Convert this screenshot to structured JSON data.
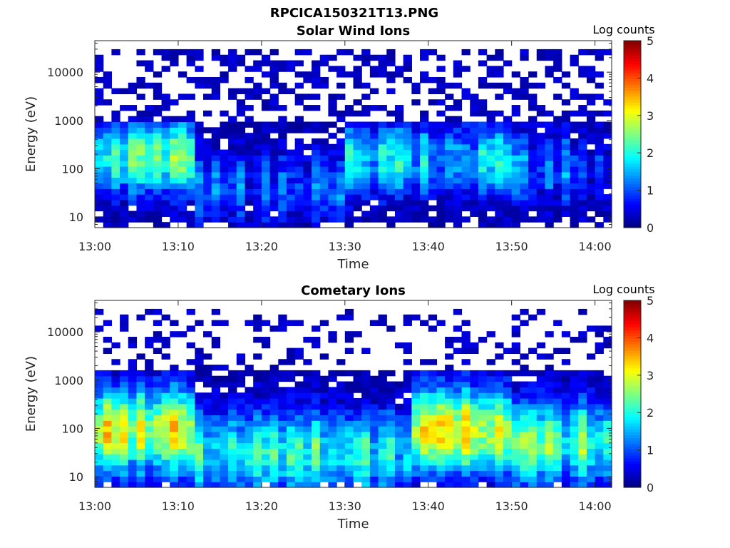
{
  "figure_title": "RPCICA150321T13.PNG",
  "chart_data": [
    {
      "type": "heatmap",
      "title": "Solar Wind Ions",
      "xlabel": "Time",
      "ylabel": "Energy (eV)",
      "yscale": "log",
      "ylim": [
        6,
        45000
      ],
      "xlim": [
        "13:00",
        "14:02"
      ],
      "x_ticks": [
        "13:00",
        "13:10",
        "13:20",
        "13:30",
        "13:40",
        "13:50",
        "14:00"
      ],
      "y_ticks": [
        "10",
        "100",
        "1000",
        "10000"
      ],
      "colorbar": {
        "label": "Log counts",
        "range": [
          0,
          5
        ],
        "ticks": [
          "0",
          "1",
          "2",
          "3",
          "4",
          "5"
        ],
        "colormap": "jet"
      },
      "time_bins": 62,
      "energy_bins": 32,
      "peak_profile": [
        {
          "t0": 0,
          "t1": 12,
          "log_energy_center": 2.25,
          "value": 2.1
        },
        {
          "t0": 12,
          "t1": 30,
          "log_energy_center": 1.6,
          "value": 1.0
        },
        {
          "t0": 30,
          "t1": 50,
          "log_energy_center": 2.2,
          "value": 1.7
        },
        {
          "t0": 50,
          "t1": 62,
          "log_energy_center": 2.0,
          "value": 1.0
        }
      ]
    },
    {
      "type": "heatmap",
      "title": "Cometary Ions",
      "xlabel": "Time",
      "ylabel": "Energy (eV)",
      "yscale": "log",
      "ylim": [
        6,
        45000
      ],
      "xlim": [
        "13:00",
        "14:02"
      ],
      "x_ticks": [
        "13:00",
        "13:10",
        "13:20",
        "13:30",
        "13:40",
        "13:50",
        "14:00"
      ],
      "y_ticks": [
        "10",
        "100",
        "1000",
        "10000"
      ],
      "colorbar": {
        "label": "Log counts",
        "range": [
          0,
          5
        ],
        "ticks": [
          "0",
          "1",
          "2",
          "3",
          "4",
          "5"
        ],
        "colormap": "jet"
      },
      "time_bins": 62,
      "energy_bins": 32,
      "peak_profile": [
        {
          "t0": 0,
          "t1": 12,
          "log_energy_center": 1.95,
          "value": 2.9
        },
        {
          "t0": 12,
          "t1": 38,
          "log_energy_center": 1.5,
          "value": 1.9
        },
        {
          "t0": 38,
          "t1": 50,
          "log_energy_center": 1.95,
          "value": 3.0
        },
        {
          "t0": 50,
          "t1": 62,
          "log_energy_center": 1.7,
          "value": 2.2
        }
      ]
    }
  ]
}
